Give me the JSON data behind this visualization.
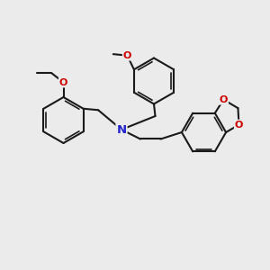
{
  "background_color": "#ebebeb",
  "bond_color": "#1a1a1a",
  "nitrogen_color": "#2222cc",
  "oxygen_color": "#cc0000",
  "bond_width": 1.5,
  "figsize": [
    3.0,
    3.0
  ],
  "dpi": 100,
  "xlim": [
    0,
    10
  ],
  "ylim": [
    0,
    10
  ]
}
